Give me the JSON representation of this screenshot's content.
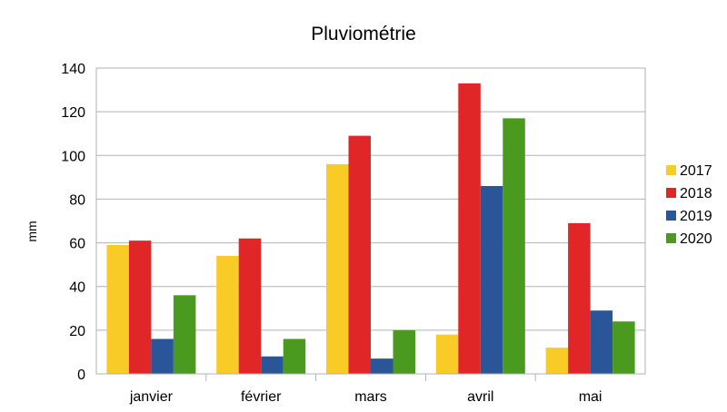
{
  "chart_data": {
    "type": "bar",
    "title": "Pluviométrie",
    "xlabel": "",
    "ylabel": "mm",
    "ylim": [
      0,
      140
    ],
    "yticks": [
      0,
      20,
      40,
      60,
      80,
      100,
      120,
      140
    ],
    "grid": true,
    "legend_position": "right",
    "categories": [
      "janvier",
      "février",
      "mars",
      "avril",
      "mai"
    ],
    "series": [
      {
        "name": "2017",
        "color": "#f9cb26",
        "values": [
          59,
          54,
          96,
          18,
          12
        ]
      },
      {
        "name": "2018",
        "color": "#e02626",
        "values": [
          61,
          62,
          109,
          133,
          69
        ]
      },
      {
        "name": "2019",
        "color": "#2a5599",
        "values": [
          16,
          8,
          7,
          86,
          29
        ]
      },
      {
        "name": "2020",
        "color": "#4a9a1f",
        "values": [
          36,
          16,
          20,
          117,
          24
        ]
      }
    ]
  }
}
